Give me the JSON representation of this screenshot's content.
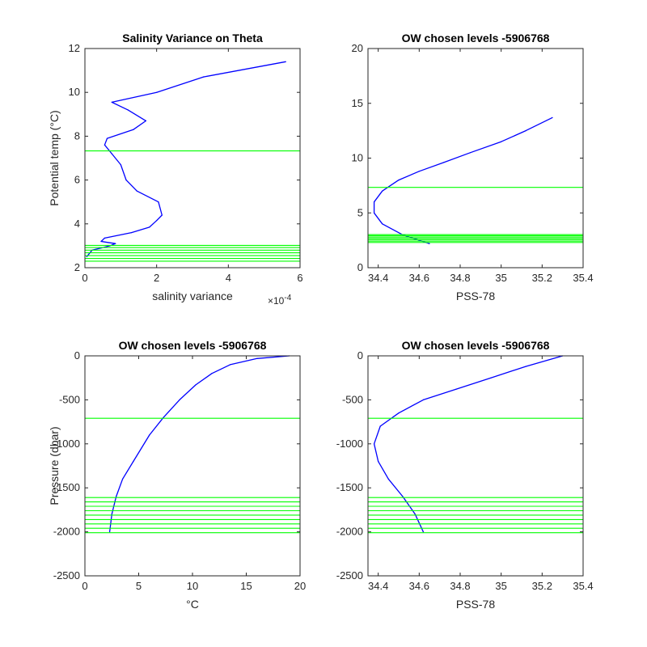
{
  "chart_data": [
    {
      "type": "line",
      "title": "Salinity Variance on Theta",
      "xlabel": "salinity variance",
      "ylabel": "Potential temp (°C)",
      "x_multiplier": "×10",
      "x_multiplier_exp": "-4",
      "xlim": [
        0,
        6
      ],
      "ylim": [
        2,
        12
      ],
      "xticks": [
        0,
        2,
        4,
        6
      ],
      "yticks": [
        2,
        4,
        6,
        8,
        10,
        12
      ],
      "series": [
        {
          "color": "#0000ff",
          "x": [
            0.05,
            0.2,
            0.45,
            0.7,
            0.85,
            0.45,
            0.55,
            1.3,
            1.8,
            1.9,
            2.0,
            2.15,
            2.05,
            1.45,
            1.15,
            1.0,
            0.75,
            0.55,
            0.62,
            1.35,
            1.7,
            1.2,
            0.75,
            2.0,
            3.3,
            5.6
          ],
          "y": [
            2.5,
            2.8,
            2.9,
            3.0,
            3.1,
            3.2,
            3.35,
            3.6,
            3.85,
            4.0,
            4.15,
            4.4,
            5.0,
            5.5,
            6.0,
            6.7,
            7.2,
            7.6,
            7.9,
            8.3,
            8.7,
            9.2,
            9.55,
            10.0,
            10.7,
            11.4
          ]
        }
      ],
      "hlines": {
        "color": "#00ff00",
        "y": [
          7.33,
          2.3,
          2.42,
          2.55,
          2.68,
          2.8,
          2.92,
          3.02
        ]
      }
    },
    {
      "type": "line",
      "title": "OW chosen levels -5906768",
      "xlabel": "PSS-78",
      "ylabel": "",
      "xlim": [
        34.35,
        35.4
      ],
      "ylim": [
        0,
        20
      ],
      "xticks": [
        34.4,
        34.6,
        34.8,
        35,
        35.2,
        35.4
      ],
      "yticks": [
        0,
        5,
        10,
        15,
        20
      ],
      "series": [
        {
          "color": "#0000ff",
          "x": [
            34.65,
            34.52,
            34.42,
            34.38,
            34.38,
            34.42,
            34.5,
            34.6,
            34.72,
            34.85,
            35.0,
            35.12,
            35.25
          ],
          "y": [
            2.2,
            3.0,
            4.0,
            5.0,
            6.0,
            7.0,
            8.0,
            8.8,
            9.6,
            10.5,
            11.5,
            12.5,
            13.7
          ]
        }
      ],
      "hlines": {
        "color": "#00ff00",
        "y": [
          7.33,
          2.3,
          2.42,
          2.55,
          2.68,
          2.8,
          2.92,
          3.02
        ]
      }
    },
    {
      "type": "line",
      "title": "OW chosen levels -5906768",
      "xlabel": "°C",
      "ylabel": "Pressure (dbar)",
      "xlim": [
        0,
        20
      ],
      "ylim": [
        -2500,
        0
      ],
      "xticks": [
        0,
        5,
        10,
        15,
        20
      ],
      "yticks": [
        -2500,
        -2000,
        -1500,
        -1000,
        -500,
        0
      ],
      "series": [
        {
          "color": "#0000ff",
          "x": [
            2.3,
            2.5,
            2.9,
            3.5,
            4.5,
            6.0,
            7.3,
            8.8,
            10.3,
            11.8,
            13.5,
            16.0,
            19.0
          ],
          "y": [
            -2000,
            -1800,
            -1600,
            -1400,
            -1200,
            -900,
            -700,
            -500,
            -330,
            -200,
            -100,
            -30,
            0
          ]
        }
      ],
      "hlines": {
        "color": "#00ff00",
        "y": [
          -710,
          -1610,
          -1660,
          -1710,
          -1760,
          -1810,
          -1860,
          -1910,
          -1960,
          -2010
        ]
      }
    },
    {
      "type": "line",
      "title": "OW chosen levels -5906768",
      "xlabel": "PSS-78",
      "ylabel": "",
      "xlim": [
        34.35,
        35.4
      ],
      "ylim": [
        -2500,
        0
      ],
      "xticks": [
        34.4,
        34.6,
        34.8,
        35,
        35.2,
        35.4
      ],
      "yticks": [
        -2500,
        -2000,
        -1500,
        -1000,
        -500,
        0
      ],
      "series": [
        {
          "color": "#0000ff",
          "x": [
            34.62,
            34.58,
            34.52,
            34.45,
            34.4,
            34.38,
            34.41,
            34.5,
            34.62,
            34.78,
            34.95,
            35.12,
            35.3
          ],
          "y": [
            -2000,
            -1800,
            -1600,
            -1400,
            -1200,
            -1000,
            -800,
            -650,
            -500,
            -380,
            -250,
            -120,
            0
          ]
        }
      ],
      "hlines": {
        "color": "#00ff00",
        "y": [
          -710,
          -1610,
          -1660,
          -1710,
          -1760,
          -1810,
          -1860,
          -1910,
          -1960,
          -2010
        ]
      }
    }
  ]
}
